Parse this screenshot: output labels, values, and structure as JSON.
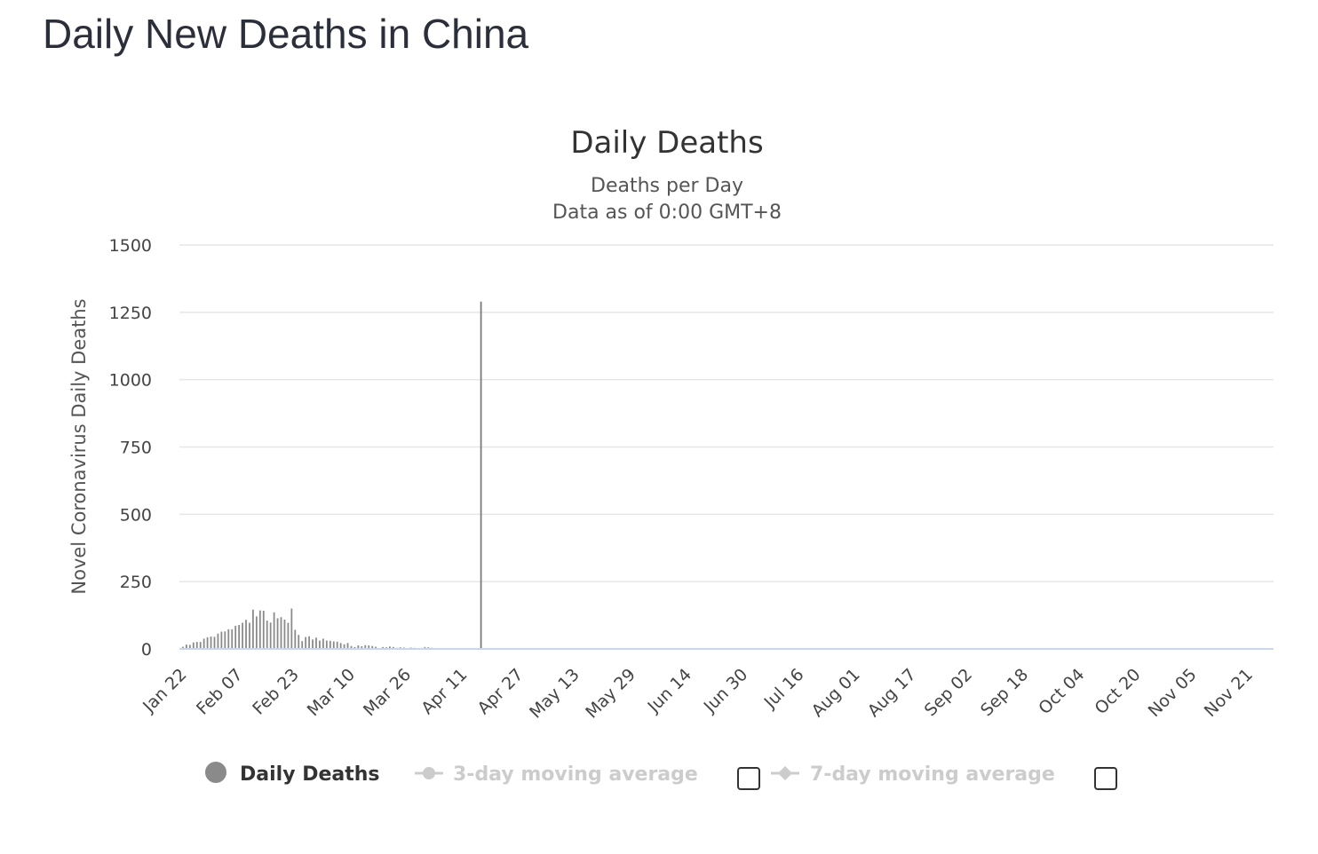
{
  "page": {
    "heading": "Daily New Deaths in China"
  },
  "colors": {
    "bar": "#8a8a8a",
    "spike": "#7a7a7a",
    "gridline": "#e6e6e6",
    "axis_line": "#ccd6eb",
    "legend_active": "#333333",
    "legend_inactive": "#cccccc",
    "legend_active_symbol": "#8a8a8a"
  },
  "chart_data": {
    "type": "bar",
    "title": "Daily Deaths",
    "subtitle": [
      "Deaths per Day",
      "Data as of 0:00 GMT+8"
    ],
    "ylabel": "Novel Coronavirus Daily Deaths",
    "xlabel": "",
    "ylim": [
      0,
      1500
    ],
    "y_ticks": [
      0,
      250,
      500,
      750,
      1000,
      1250,
      1500
    ],
    "grid": true,
    "x_start": "2020-01-22",
    "x_end": "2020-11-29",
    "x_ticks": [
      "Jan 22",
      "Feb 07",
      "Feb 23",
      "Mar 10",
      "Mar 26",
      "Apr 11",
      "Apr 27",
      "May 13",
      "May 29",
      "Jun 14",
      "Jun 30",
      "Jul 16",
      "Aug 01",
      "Aug 17",
      "Sep 02",
      "Sep 18",
      "Oct 04",
      "Oct 20",
      "Nov 05",
      "Nov 21"
    ],
    "series": [
      {
        "name": "Daily Deaths",
        "points": [
          [
            "2020-01-23",
            8
          ],
          [
            "2020-01-24",
            16
          ],
          [
            "2020-01-25",
            15
          ],
          [
            "2020-01-26",
            24
          ],
          [
            "2020-01-27",
            26
          ],
          [
            "2020-01-28",
            26
          ],
          [
            "2020-01-29",
            38
          ],
          [
            "2020-01-30",
            43
          ],
          [
            "2020-01-31",
            46
          ],
          [
            "2020-02-01",
            45
          ],
          [
            "2020-02-02",
            57
          ],
          [
            "2020-02-03",
            64
          ],
          [
            "2020-02-04",
            65
          ],
          [
            "2020-02-05",
            73
          ],
          [
            "2020-02-06",
            73
          ],
          [
            "2020-02-07",
            86
          ],
          [
            "2020-02-08",
            89
          ],
          [
            "2020-02-09",
            97
          ],
          [
            "2020-02-10",
            108
          ],
          [
            "2020-02-11",
            97
          ],
          [
            "2020-02-12",
            146
          ],
          [
            "2020-02-13",
            121
          ],
          [
            "2020-02-14",
            143
          ],
          [
            "2020-02-15",
            142
          ],
          [
            "2020-02-16",
            105
          ],
          [
            "2020-02-17",
            98
          ],
          [
            "2020-02-18",
            136
          ],
          [
            "2020-02-19",
            114
          ],
          [
            "2020-02-20",
            118
          ],
          [
            "2020-02-21",
            109
          ],
          [
            "2020-02-22",
            97
          ],
          [
            "2020-02-23",
            150
          ],
          [
            "2020-02-24",
            71
          ],
          [
            "2020-02-25",
            52
          ],
          [
            "2020-02-26",
            29
          ],
          [
            "2020-02-27",
            44
          ],
          [
            "2020-02-28",
            47
          ],
          [
            "2020-02-29",
            35
          ],
          [
            "2020-03-01",
            42
          ],
          [
            "2020-03-02",
            31
          ],
          [
            "2020-03-03",
            38
          ],
          [
            "2020-03-04",
            31
          ],
          [
            "2020-03-05",
            30
          ],
          [
            "2020-03-06",
            28
          ],
          [
            "2020-03-07",
            27
          ],
          [
            "2020-03-08",
            22
          ],
          [
            "2020-03-09",
            17
          ],
          [
            "2020-03-10",
            22
          ],
          [
            "2020-03-11",
            11
          ],
          [
            "2020-03-12",
            7
          ],
          [
            "2020-03-13",
            13
          ],
          [
            "2020-03-14",
            10
          ],
          [
            "2020-03-15",
            14
          ],
          [
            "2020-03-16",
            13
          ],
          [
            "2020-03-17",
            11
          ],
          [
            "2020-03-18",
            8
          ],
          [
            "2020-03-19",
            3
          ],
          [
            "2020-03-20",
            7
          ],
          [
            "2020-03-21",
            6
          ],
          [
            "2020-03-22",
            9
          ],
          [
            "2020-03-23",
            7
          ],
          [
            "2020-03-24",
            4
          ],
          [
            "2020-03-25",
            6
          ],
          [
            "2020-03-26",
            5
          ],
          [
            "2020-03-27",
            3
          ],
          [
            "2020-03-28",
            5
          ],
          [
            "2020-03-29",
            4
          ],
          [
            "2020-03-30",
            1
          ],
          [
            "2020-03-31",
            1
          ],
          [
            "2020-04-01",
            7
          ],
          [
            "2020-04-02",
            6
          ],
          [
            "2020-04-03",
            4
          ],
          [
            "2020-04-04",
            3
          ],
          [
            "2020-04-05",
            1
          ],
          [
            "2020-04-06",
            2
          ],
          [
            "2020-04-07",
            1
          ],
          [
            "2020-04-08",
            2
          ],
          [
            "2020-04-09",
            1
          ],
          [
            "2020-04-10",
            3
          ],
          [
            "2020-04-11",
            3
          ],
          [
            "2020-04-12",
            1
          ],
          [
            "2020-04-13",
            1
          ],
          [
            "2020-04-14",
            1
          ],
          [
            "2020-04-15",
            1
          ],
          [
            "2020-04-16",
            1
          ],
          [
            "2020-04-17",
            1290
          ],
          [
            "2020-04-18",
            1
          ],
          [
            "2020-04-19",
            1
          ],
          [
            "2020-04-20",
            1
          ],
          [
            "2020-04-21",
            1
          ],
          [
            "2020-04-22",
            1
          ],
          [
            "2020-04-23",
            1
          ],
          [
            "2020-04-24",
            1
          ],
          [
            "2020-04-25",
            1
          ],
          [
            "2020-04-26",
            1
          ],
          [
            "2020-04-27",
            1
          ],
          [
            "2020-04-28",
            1
          ],
          [
            "2020-04-29",
            1
          ],
          [
            "2020-04-30",
            1
          ]
        ]
      },
      {
        "name": "3-day moving average",
        "visible": false
      },
      {
        "name": "7-day moving average",
        "visible": false
      }
    ],
    "legend": {
      "placement": "bottom",
      "items": [
        {
          "label": "Daily Deaths",
          "active": true,
          "symbol": "circle"
        },
        {
          "label": "3-day moving average",
          "active": false,
          "symbol": "line-circle",
          "checkbox": false
        },
        {
          "label": "7-day moving average",
          "active": false,
          "symbol": "line-diamond",
          "checkbox": false
        }
      ]
    }
  }
}
